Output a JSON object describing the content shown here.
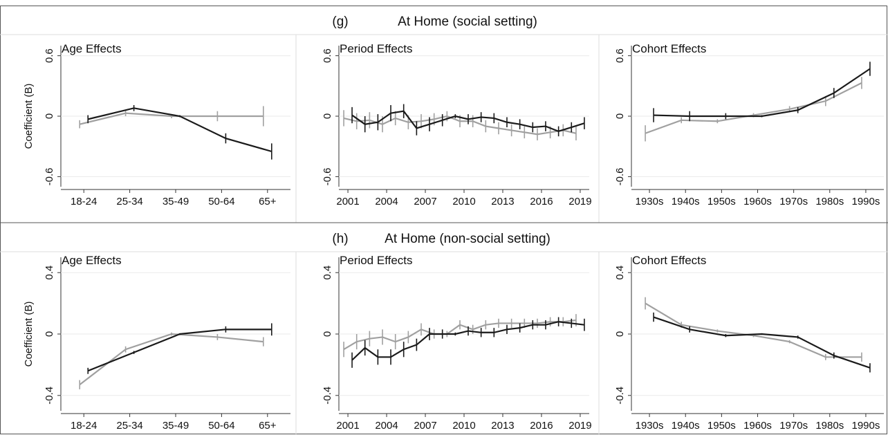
{
  "sections": [
    {
      "label": "(g)",
      "title": "At Home (social setting)",
      "chart_data": [
        {
          "type": "line",
          "title": "Age Effects",
          "ylabel": "Coefficient (B)",
          "categories": [
            "18-24",
            "25-34",
            "35-49",
            "50-64",
            "65+"
          ],
          "ylim": [
            -0.7,
            0.7
          ],
          "yticks": [
            -0.6,
            0,
            0.6
          ],
          "grid": true,
          "series": [
            {
              "color": "#a0a0a0",
              "values": [
                -0.08,
                0.03,
                0,
                0,
                0
              ],
              "errors": [
                0.04,
                0.03,
                0.02,
                0.05,
                0.1
              ]
            },
            {
              "color": "#1a1a1a",
              "values": [
                -0.03,
                0.08,
                0,
                -0.22,
                -0.35
              ],
              "errors": [
                0.04,
                0.03,
                0.01,
                0.05,
                0.08
              ]
            }
          ]
        },
        {
          "type": "line",
          "title": "Period Effects",
          "x": [
            2001,
            2002,
            2003,
            2004,
            2005,
            2006,
            2007,
            2008,
            2009,
            2010,
            2011,
            2012,
            2013,
            2014,
            2015,
            2016,
            2017,
            2018,
            2019
          ],
          "xlim": [
            2000.3,
            2019.7
          ],
          "xticks": [
            2001,
            2004,
            2007,
            2010,
            2013,
            2016,
            2019
          ],
          "ylim": [
            -0.7,
            0.7
          ],
          "yticks": [
            -0.6,
            0,
            0.6
          ],
          "grid": true,
          "series": [
            {
              "color": "#a0a0a0",
              "values": [
                -0.02,
                -0.05,
                -0.04,
                -0.08,
                -0.02,
                -0.06,
                -0.05,
                -0.03,
                0,
                -0.05,
                -0.05,
                -0.1,
                -0.12,
                -0.14,
                -0.16,
                -0.18,
                -0.16,
                -0.14,
                -0.17
              ],
              "errors": [
                0.08,
                0.08,
                0.08,
                0.08,
                0.07,
                0.07,
                0.07,
                0.06,
                0.05,
                0.06,
                0.06,
                0.06,
                0.06,
                0.06,
                0.06,
                0.06,
                0.06,
                0.06,
                0.07
              ]
            },
            {
              "color": "#1a1a1a",
              "values": [
                0.01,
                -0.08,
                -0.06,
                0.03,
                0.05,
                -0.12,
                -0.08,
                -0.04,
                0,
                -0.03,
                -0.01,
                -0.02,
                -0.06,
                -0.08,
                -0.11,
                -0.1,
                -0.15,
                -0.11,
                -0.07
              ],
              "errors": [
                0.08,
                0.08,
                0.08,
                0.08,
                0.07,
                0.07,
                0.07,
                0.06,
                0.02,
                0.05,
                0.05,
                0.05,
                0.05,
                0.05,
                0.05,
                0.05,
                0.05,
                0.05,
                0.06
              ]
            }
          ]
        },
        {
          "type": "line",
          "title": "Cohort Effects",
          "categories": [
            "1930s",
            "1940s",
            "1950s",
            "1960s",
            "1970s",
            "1980s",
            "1990s"
          ],
          "ylim": [
            -0.7,
            0.7
          ],
          "yticks": [
            -0.6,
            0,
            0.6
          ],
          "grid": true,
          "series": [
            {
              "color": "#a0a0a0",
              "values": [
                -0.17,
                -0.04,
                -0.05,
                0.01,
                0.07,
                0.15,
                0.33
              ],
              "errors": [
                0.08,
                0.03,
                0.02,
                0.02,
                0.03,
                0.05,
                0.06
              ]
            },
            {
              "color": "#1a1a1a",
              "values": [
                0.01,
                0,
                0,
                0,
                0.06,
                0.23,
                0.47
              ],
              "errors": [
                0.07,
                0.05,
                0.03,
                0.01,
                0.03,
                0.05,
                0.07
              ]
            }
          ]
        }
      ]
    },
    {
      "label": "(h)",
      "title": "At Home (non-social setting)",
      "chart_data": [
        {
          "type": "line",
          "title": "Age Effects",
          "ylabel": "Coefficient (B)",
          "categories": [
            "18-24",
            "25-34",
            "35-49",
            "50-64",
            "65+"
          ],
          "ylim": [
            -0.5,
            0.5
          ],
          "yticks": [
            -0.4,
            0,
            0.4
          ],
          "grid": true,
          "series": [
            {
              "color": "#a0a0a0",
              "values": [
                -0.33,
                -0.1,
                0,
                -0.02,
                -0.05
              ],
              "errors": [
                0.03,
                0.02,
                0.01,
                0.02,
                0.03
              ]
            },
            {
              "color": "#1a1a1a",
              "values": [
                -0.24,
                -0.12,
                0,
                0.03,
                0.03
              ],
              "errors": [
                0.02,
                0.01,
                0.005,
                0.02,
                0.04
              ]
            }
          ]
        },
        {
          "type": "line",
          "title": "Period Effects",
          "x": [
            2001,
            2002,
            2003,
            2004,
            2005,
            2006,
            2007,
            2008,
            2009,
            2010,
            2011,
            2012,
            2013,
            2014,
            2015,
            2016,
            2017,
            2018,
            2019
          ],
          "xlim": [
            2000.3,
            2019.7
          ],
          "xticks": [
            2001,
            2004,
            2007,
            2010,
            2013,
            2016,
            2019
          ],
          "ylim": [
            -0.5,
            0.5
          ],
          "yticks": [
            -0.4,
            0,
            0.4
          ],
          "grid": true,
          "series": [
            {
              "color": "#a0a0a0",
              "values": [
                -0.1,
                -0.05,
                -0.03,
                -0.02,
                -0.05,
                -0.02,
                0.03,
                0,
                0,
                0.06,
                0.03,
                0.06,
                0.07,
                0.07,
                0.07,
                0.07,
                0.08,
                0.08,
                0.09
              ],
              "errors": [
                0.05,
                0.05,
                0.05,
                0.05,
                0.05,
                0.04,
                0.04,
                0.03,
                0.02,
                0.03,
                0.03,
                0.03,
                0.03,
                0.03,
                0.03,
                0.03,
                0.03,
                0.03,
                0.04
              ]
            },
            {
              "color": "#1a1a1a",
              "values": [
                -0.17,
                -0.09,
                -0.15,
                -0.15,
                -0.1,
                -0.07,
                0,
                0,
                0,
                0.02,
                0.01,
                0.01,
                0.03,
                0.04,
                0.06,
                0.06,
                0.08,
                0.07,
                0.06
              ],
              "errors": [
                0.05,
                0.05,
                0.05,
                0.05,
                0.05,
                0.04,
                0.04,
                0.03,
                0.01,
                0.03,
                0.03,
                0.03,
                0.03,
                0.03,
                0.03,
                0.03,
                0.03,
                0.03,
                0.04
              ]
            }
          ]
        },
        {
          "type": "line",
          "title": "Cohort Effects",
          "categories": [
            "1930s",
            "1940s",
            "1950s",
            "1960s",
            "1970s",
            "1980s",
            "1990s"
          ],
          "ylim": [
            -0.5,
            0.5
          ],
          "yticks": [
            -0.4,
            0,
            0.4
          ],
          "grid": true,
          "series": [
            {
              "color": "#a0a0a0",
              "values": [
                0.2,
                0.06,
                0.02,
                -0.01,
                -0.05,
                -0.15,
                -0.15
              ],
              "errors": [
                0.04,
                0.02,
                0.01,
                0.01,
                0.01,
                0.02,
                0.03
              ]
            },
            {
              "color": "#1a1a1a",
              "values": [
                0.11,
                0.03,
                -0.01,
                0,
                -0.02,
                -0.14,
                -0.22
              ],
              "errors": [
                0.03,
                0.02,
                0.01,
                0.005,
                0.01,
                0.02,
                0.03
              ]
            }
          ]
        }
      ]
    }
  ]
}
